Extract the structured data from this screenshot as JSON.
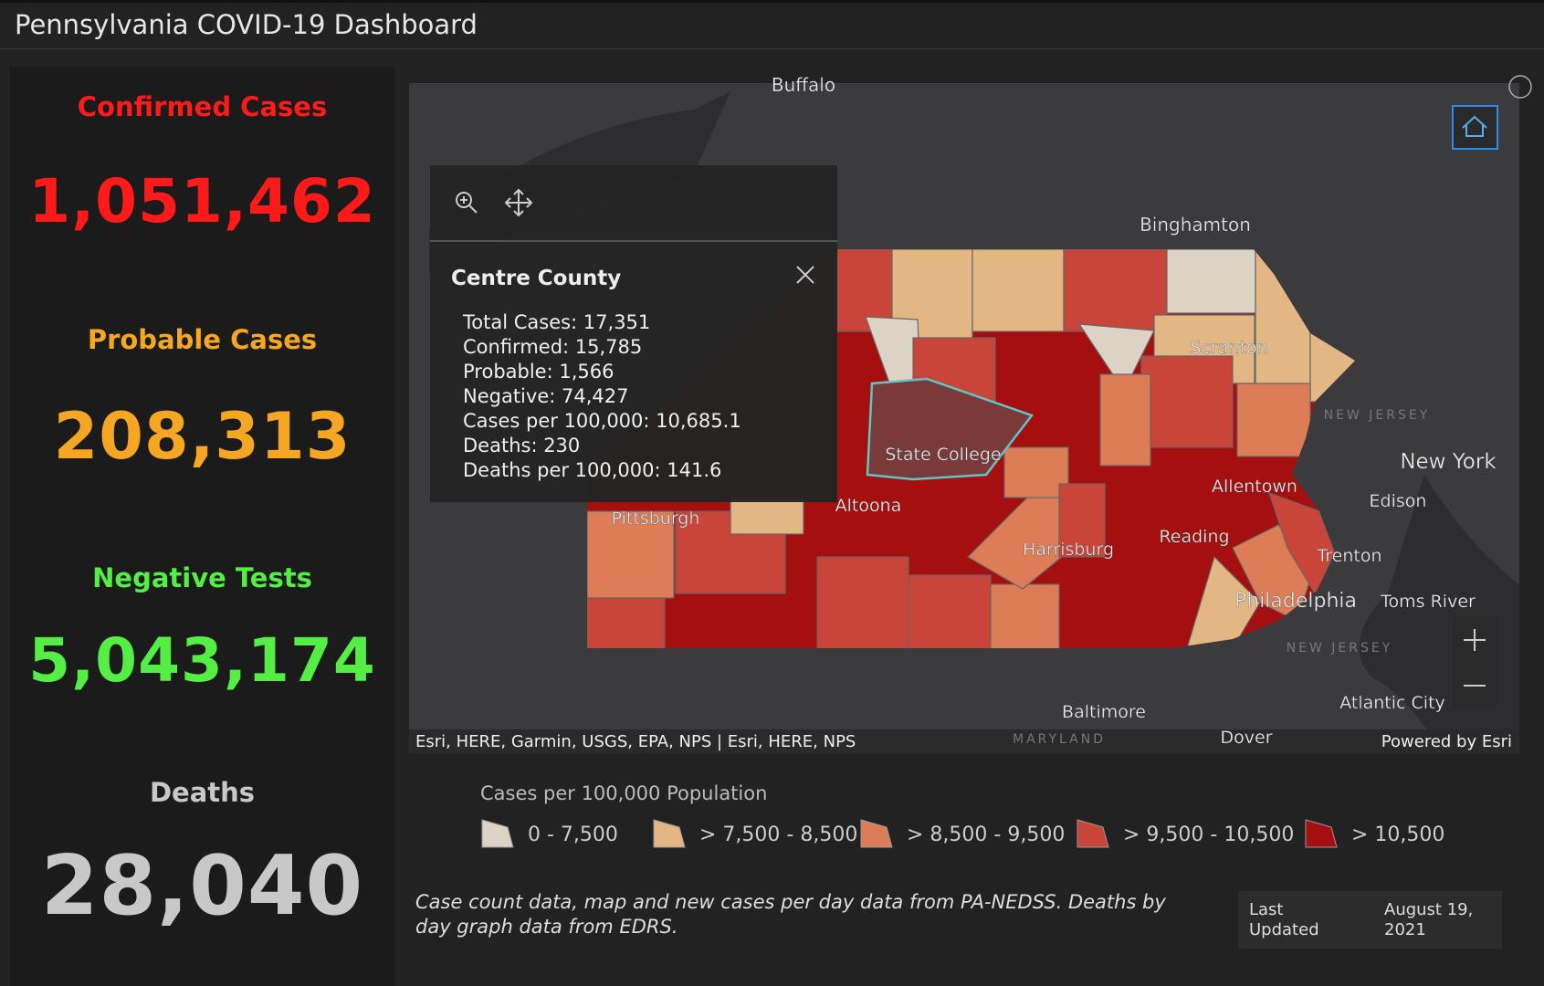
{
  "header": {
    "title": "Pennsylvania COVID-19 Dashboard"
  },
  "stats": [
    {
      "label": "Confirmed Cases",
      "value": "1,051,462"
    },
    {
      "label": "Probable Cases",
      "value": "208,313"
    },
    {
      "label": "Negative Tests",
      "value": "5,043,174"
    },
    {
      "label": "Deaths",
      "value": "28,040"
    }
  ],
  "map": {
    "labels": [
      "Buffalo",
      "Binghamton",
      "Scranton",
      "New York",
      "Edison",
      "Allentown",
      "Reading",
      "Trenton",
      "Philadelphia",
      "Toms River",
      "Atlantic City",
      "Baltimore",
      "Dover",
      "Harrisburg",
      "Altoona",
      "State College",
      "Pittsburgh",
      "NEW JERSEY",
      "NEW JERSEY",
      "MARYLAND"
    ],
    "attribution": "Esri, HERE, Garmin, USGS, EPA, NPS | Esri, HERE, NPS",
    "powered_by": "Powered by Esri"
  },
  "popup": {
    "title": "Centre County",
    "lines": [
      "Total Cases: 17,351",
      "Confirmed: 15,785",
      "Probable: 1,566",
      "Negative: 74,427",
      "Cases per 100,000: 10,685.1",
      "Deaths: 230",
      "Deaths per 100,000: 141.6"
    ]
  },
  "legend": {
    "title": "Cases per 100,000 Population",
    "items": [
      {
        "label": "0 - 7,500",
        "color": "#ddd3c5"
      },
      {
        "label": "> 7,500 - 8,500",
        "color": "#e3b784"
      },
      {
        "label": "> 8,500 - 9,500",
        "color": "#dd7d57"
      },
      {
        "label": "> 9,500 - 10,500",
        "color": "#c9453a"
      },
      {
        "label": "> 10,500",
        "color": "#a50f0f"
      }
    ]
  },
  "footnote": "Case count data, map and new cases per day data from PA-NEDSS.  Deaths by day graph data from EDRS.",
  "last_updated": {
    "label": "Last Updated",
    "value": "August 19, 2021"
  }
}
